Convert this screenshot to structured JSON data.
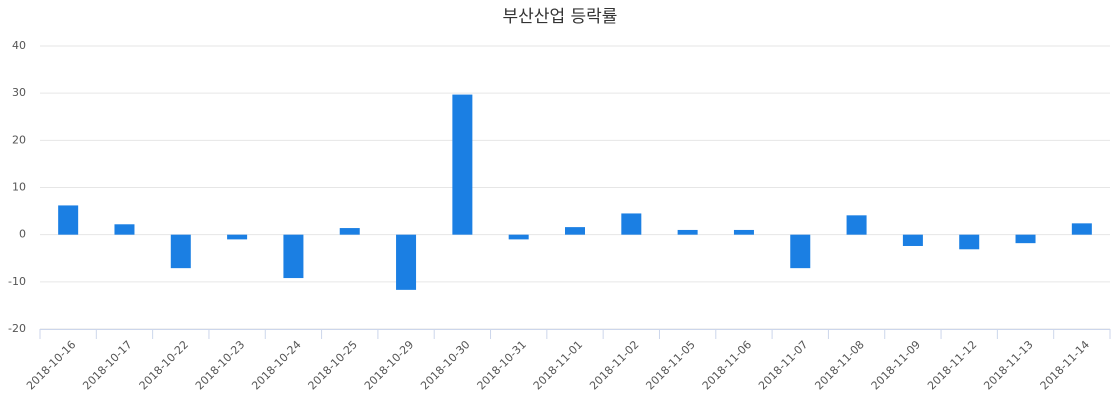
{
  "chart_data": {
    "type": "bar",
    "title": "부산산업 등락률",
    "categories": [
      "2018-10-16",
      "2018-10-17",
      "2018-10-22",
      "2018-10-23",
      "2018-10-24",
      "2018-10-25",
      "2018-10-29",
      "2018-10-30",
      "2018-10-31",
      "2018-11-01",
      "2018-11-02",
      "2018-11-05",
      "2018-11-06",
      "2018-11-07",
      "2018-11-08",
      "2018-11-09",
      "2018-11-12",
      "2018-11-13",
      "2018-11-14"
    ],
    "values": [
      6.2,
      2.2,
      -7.1,
      -1.0,
      -9.2,
      1.4,
      -11.7,
      29.7,
      -1.0,
      1.6,
      4.5,
      1.0,
      1.0,
      -7.1,
      4.1,
      -2.4,
      -3.1,
      -1.8,
      2.4
    ],
    "color": "#1b7fe3",
    "ylim": [
      -20,
      40
    ],
    "yticks": [
      -20,
      -10,
      0,
      10,
      20,
      30,
      40
    ],
    "grid": true
  }
}
